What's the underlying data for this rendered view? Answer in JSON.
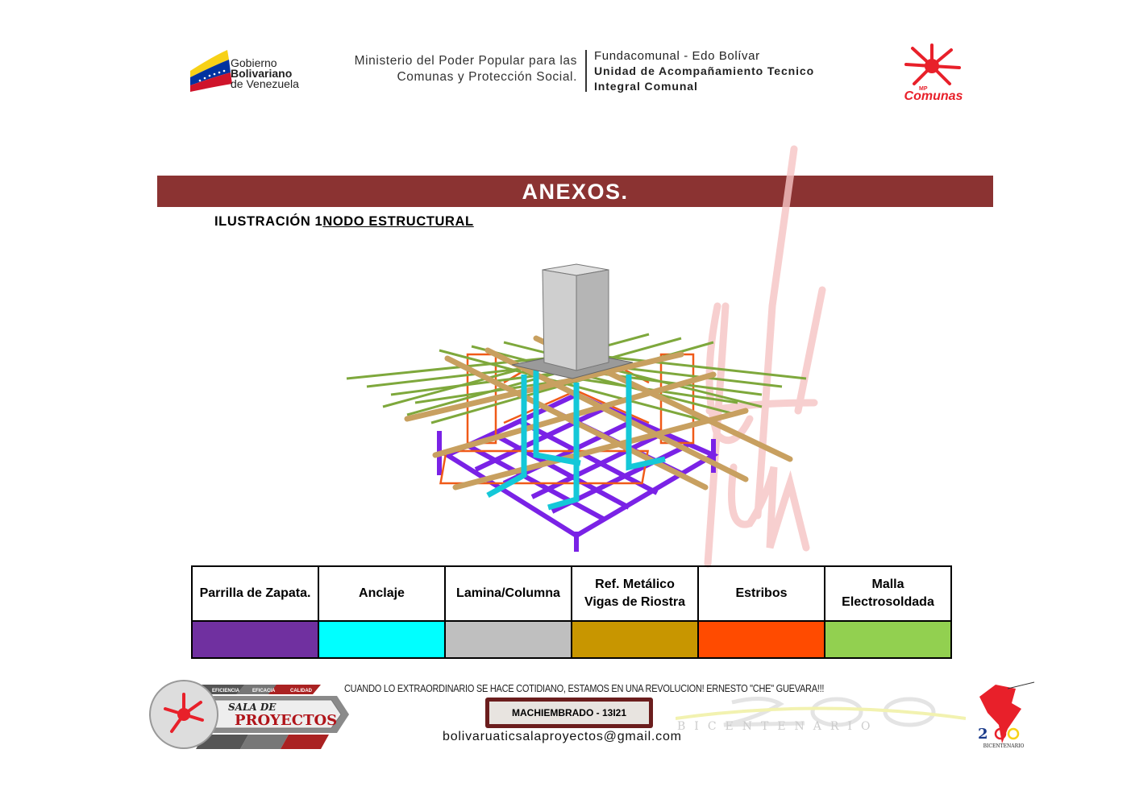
{
  "header": {
    "gov_lines": [
      "Gobierno",
      "Bolivariano",
      "de Venezuela"
    ],
    "ministry_lines": [
      "Ministerio del Poder Popular para las",
      "Comunas y Protección Social."
    ],
    "funda_lines": [
      "Fundacomunal - Edo Bolívar",
      "Unidad de Acompañamiento Tecnico",
      "Integral Comunal"
    ],
    "comunas_logo_text": "Comunas",
    "comunas_logo_small": "MP"
  },
  "banner": {
    "title": "ANEXOS."
  },
  "caption": {
    "prefix": "ILUSTRACIÓN 1",
    "title": "NODO ESTRUCTURAL"
  },
  "legend": {
    "items": [
      {
        "label": "Parrilla de Zapata.",
        "color": "#7030a0"
      },
      {
        "label": "Anclaje",
        "color": "#00ffff"
      },
      {
        "label": "Lamina/Columna",
        "color": "#bfbfbf"
      },
      {
        "label": "Ref. Metálico\nVigas de Riostra",
        "color": "#c89600"
      },
      {
        "label": "Estribos",
        "color": "#ff4b00"
      },
      {
        "label": "Malla\nElectrosoldada",
        "color": "#92d050"
      }
    ]
  },
  "footer": {
    "tags": [
      "EFICIENCIA",
      "EFICACIA",
      "CALIDAD"
    ],
    "sala_line1": "SALA DE",
    "sala_line2": "PROYECTOS",
    "motto": "CUANDO LO EXTRAORDINARIO SE  HACE COTIDIANO, ESTAMOS EN UNA  REVOLUCION! ERNESTO \"CHE\" GUEVARA!!!",
    "code": "MACHIEMBRADO - 13I21",
    "email": "bolivaruaticsalaproyectos@gmail.com",
    "bicentenario": "BICENTENARIO"
  },
  "colors": {
    "banner": "#8b3332",
    "purple": "#7030a0",
    "cyan": "#00ffff",
    "gray": "#bfbfbf",
    "tan": "#c89600",
    "orange": "#ff4b00",
    "green": "#92d050"
  }
}
